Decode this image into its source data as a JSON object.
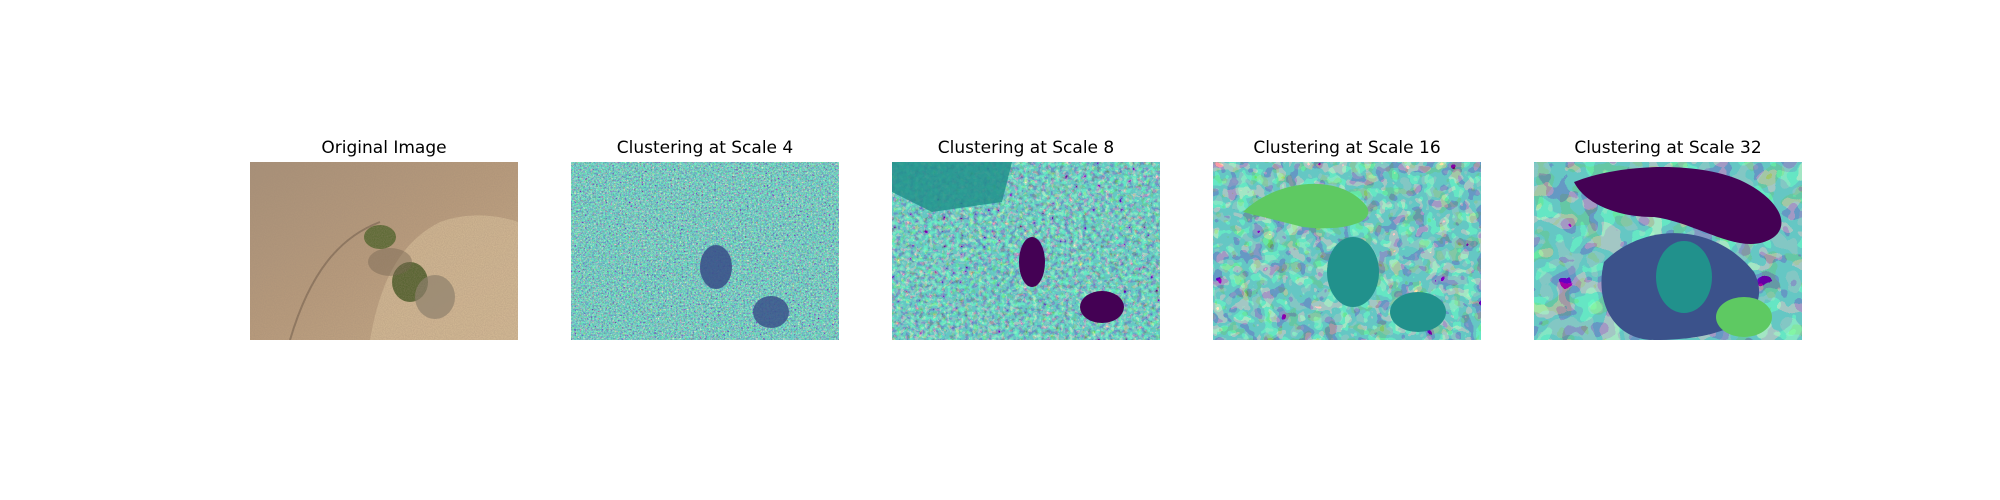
{
  "panels": [
    {
      "title": "Original Image",
      "kind": "photo"
    },
    {
      "title": "Clustering at Scale 4",
      "kind": "cluster"
    },
    {
      "title": "Clustering at Scale 8",
      "kind": "cluster"
    },
    {
      "title": "Clustering at Scale 16",
      "kind": "cluster"
    },
    {
      "title": "Clustering at Scale 32",
      "kind": "cluster"
    }
  ],
  "colors": {
    "viridis": [
      "#440154",
      "#3b528b",
      "#21918c",
      "#5ec962",
      "#fde725"
    ],
    "photo_sand": "#b49a7c",
    "photo_shrub": "#5e6a33"
  }
}
